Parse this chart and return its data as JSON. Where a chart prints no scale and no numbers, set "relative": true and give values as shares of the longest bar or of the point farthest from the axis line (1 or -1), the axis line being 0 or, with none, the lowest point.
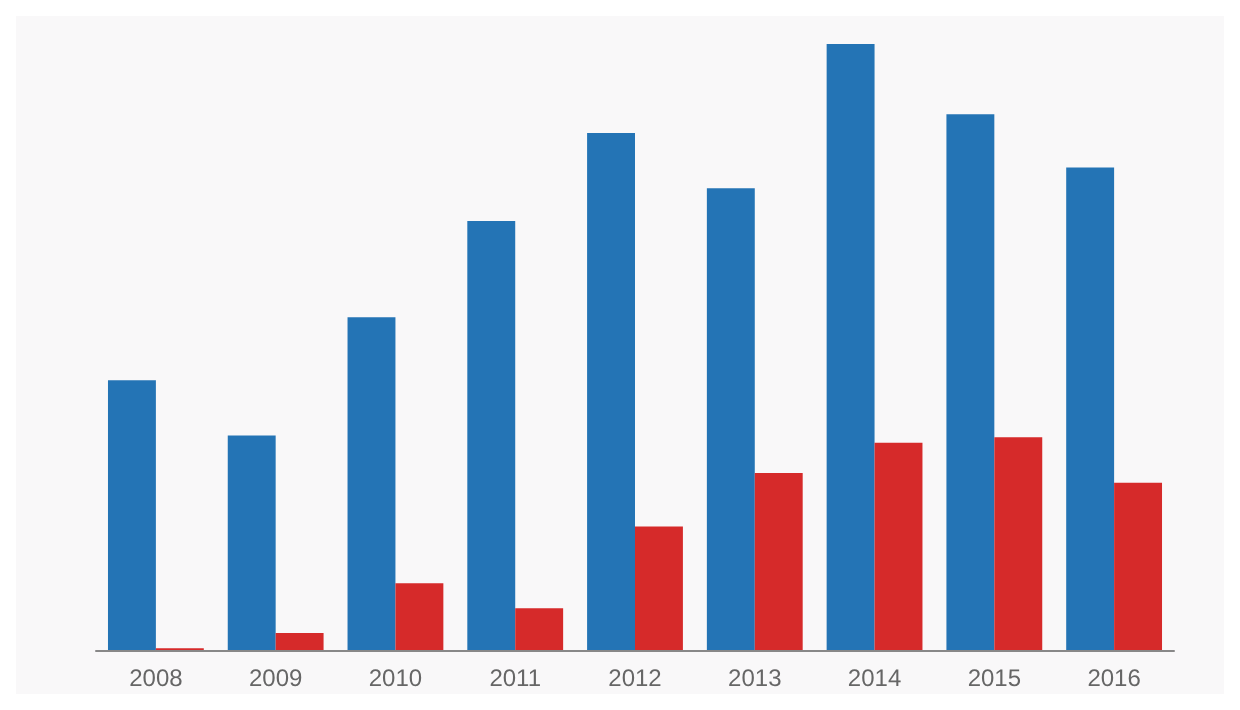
{
  "chart_data": {
    "type": "bar",
    "relative": true,
    "categories": [
      "2008",
      "2009",
      "2010",
      "2011",
      "2012",
      "2013",
      "2014",
      "2015",
      "2016"
    ],
    "series": [
      {
        "color": "#2474b5",
        "values": [
          0.445,
          0.354,
          0.549,
          0.708,
          0.853,
          0.762,
          1,
          0.884,
          0.796
        ]
      },
      {
        "color": "#d62a2a",
        "values": [
          0.003,
          0.028,
          0.11,
          0.069,
          0.204,
          0.292,
          0.342,
          0.351,
          0.276
        ]
      }
    ]
  }
}
